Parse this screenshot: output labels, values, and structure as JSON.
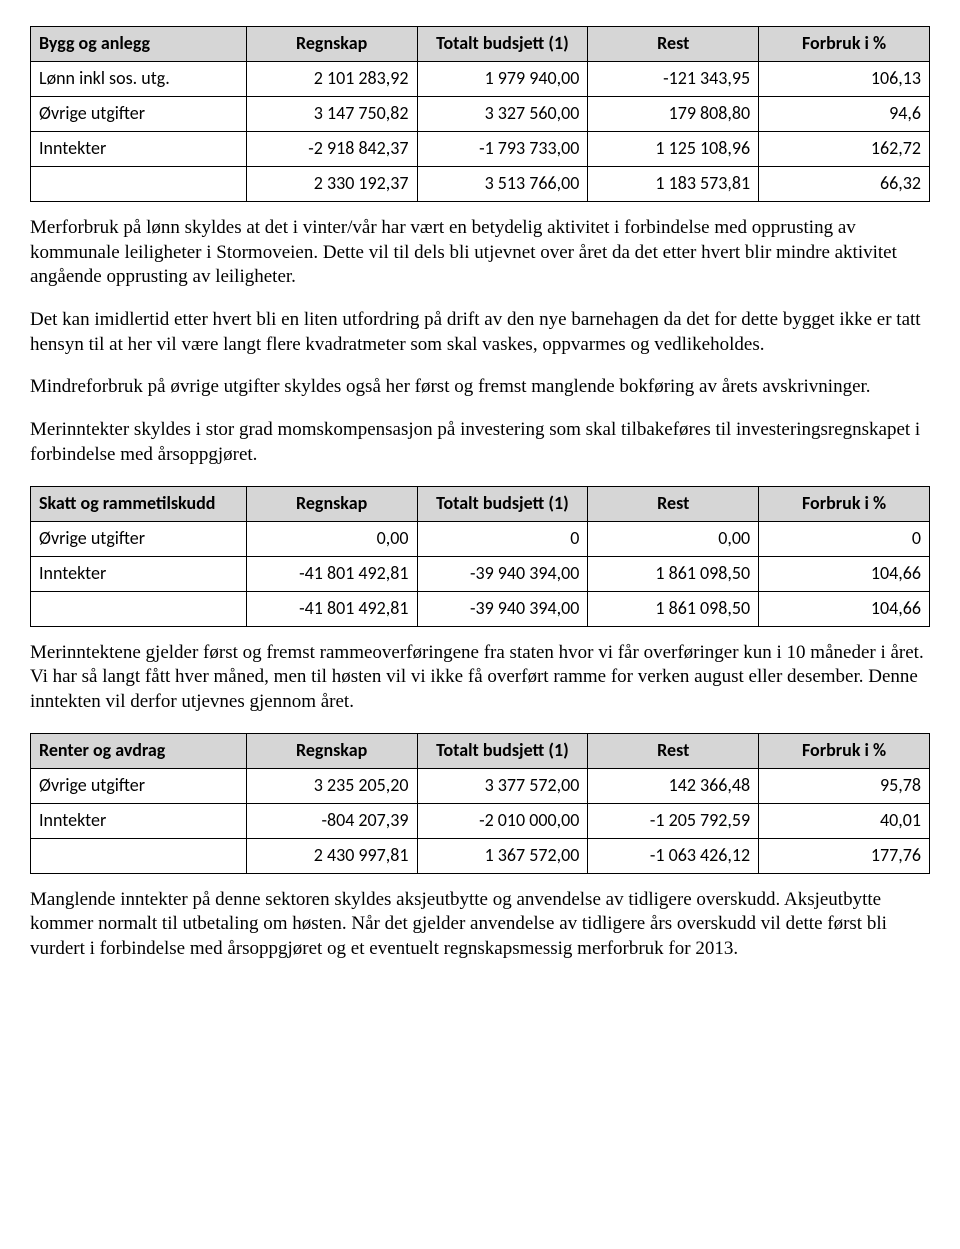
{
  "table1": {
    "headers": [
      "Bygg og anlegg",
      "Regnskap",
      "Totalt budsjett (1)",
      "Rest",
      "Forbruk i %"
    ],
    "rows": [
      [
        "Lønn inkl sos. utg.",
        "2 101 283,92",
        "1 979 940,00",
        "-121 343,95",
        "106,13"
      ],
      [
        "Øvrige utgifter",
        "3 147 750,82",
        "3 327 560,00",
        "179 808,80",
        "94,6"
      ],
      [
        "Inntekter",
        "-2 918 842,37",
        "-1 793 733,00",
        "1 125 108,96",
        "162,72"
      ],
      [
        "",
        "2 330 192,37",
        "3 513 766,00",
        "1 183 573,81",
        "66,32"
      ]
    ]
  },
  "para1": "Merforbruk på lønn skyldes at det i vinter/vår har vært en betydelig aktivitet i forbindelse med opprusting av kommunale leiligheter i Stormoveien. Dette vil til dels bli utjevnet over året da det etter hvert blir mindre aktivitet angående opprusting av leiligheter.",
  "para2": "Det kan imidlertid etter hvert bli en liten utfordring på drift av den nye barnehagen da det for dette bygget ikke er tatt hensyn til at her vil være langt flere kvadratmeter som skal vaskes, oppvarmes og vedlikeholdes.",
  "para3": "Mindreforbruk på øvrige utgifter skyldes også her først og fremst manglende bokføring av årets avskrivninger.",
  "para4": "Merinntekter skyldes i stor grad momskompensasjon på investering som skal tilbakeføres til investeringsregnskapet i forbindelse med årsoppgjøret.",
  "table2": {
    "headers": [
      "Skatt og rammetilskudd",
      "Regnskap",
      "Totalt budsjett (1)",
      "Rest",
      "Forbruk i %"
    ],
    "rows": [
      [
        "Øvrige utgifter",
        "0,00",
        "0",
        "0,00",
        "0"
      ],
      [
        "Inntekter",
        "-41 801 492,81",
        "-39 940 394,00",
        "1 861 098,50",
        "104,66"
      ],
      [
        "",
        "-41 801 492,81",
        "-39 940 394,00",
        "1 861 098,50",
        "104,66"
      ]
    ]
  },
  "para5": "Merinntektene gjelder først og fremst rammeoverføringene fra staten hvor vi får overføringer kun i 10 måneder i året. Vi har så langt fått hver måned, men til høsten vil vi ikke få overført ramme for verken august eller desember. Denne inntekten vil derfor utjevnes gjennom året.",
  "table3": {
    "headers": [
      "Renter og avdrag",
      "Regnskap",
      "Totalt budsjett (1)",
      "Rest",
      "Forbruk i %"
    ],
    "rows": [
      [
        "Øvrige utgifter",
        "3 235 205,20",
        "3 377 572,00",
        "142 366,48",
        "95,78"
      ],
      [
        "Inntekter",
        "-804 207,39",
        "-2 010 000,00",
        "-1 205 792,59",
        "40,01"
      ],
      [
        "",
        "2 430 997,81",
        "1 367 572,00",
        "-1 063 426,12",
        "177,76"
      ]
    ]
  },
  "para6": "Manglende inntekter på denne sektoren skyldes aksjeutbytte og anvendelse av tidligere overskudd. Aksjeutbytte kommer normalt til utbetaling om høsten. Når det gjelder anvendelse av tidligere års overskudd vil dette først bli vurdert i forbindelse med årsoppgjøret og et eventuelt regnskapsmessig merforbruk for 2013."
}
